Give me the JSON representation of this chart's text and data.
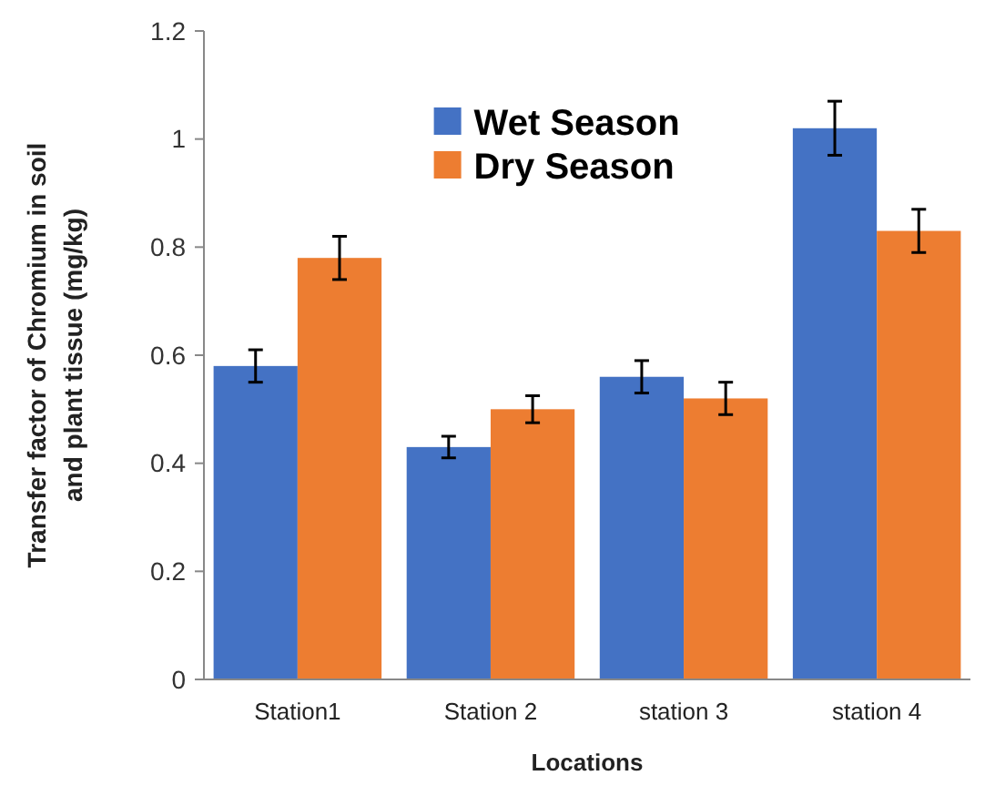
{
  "chart_data": {
    "type": "bar",
    "xlabel": "Locations",
    "ylabel": "Transfer factor  of Chromium in soil and plant tissue (mg/kg)",
    "categories": [
      "Station1",
      "Station 2",
      "station 3",
      "station 4"
    ],
    "series": [
      {
        "name": "Wet Season",
        "color": "#4472c4",
        "values": [
          0.58,
          0.43,
          0.56,
          1.02
        ],
        "errors": [
          0.03,
          0.02,
          0.03,
          0.05
        ]
      },
      {
        "name": "Dry Season",
        "color": "#ed7d31",
        "values": [
          0.78,
          0.5,
          0.52,
          0.83
        ],
        "errors": [
          0.04,
          0.025,
          0.03,
          0.04
        ]
      }
    ],
    "ylim": [
      0,
      1.2
    ],
    "yticks": [
      0,
      0.2,
      0.4,
      0.6,
      0.8,
      1,
      1.2
    ],
    "grid": false,
    "legend": "top"
  }
}
